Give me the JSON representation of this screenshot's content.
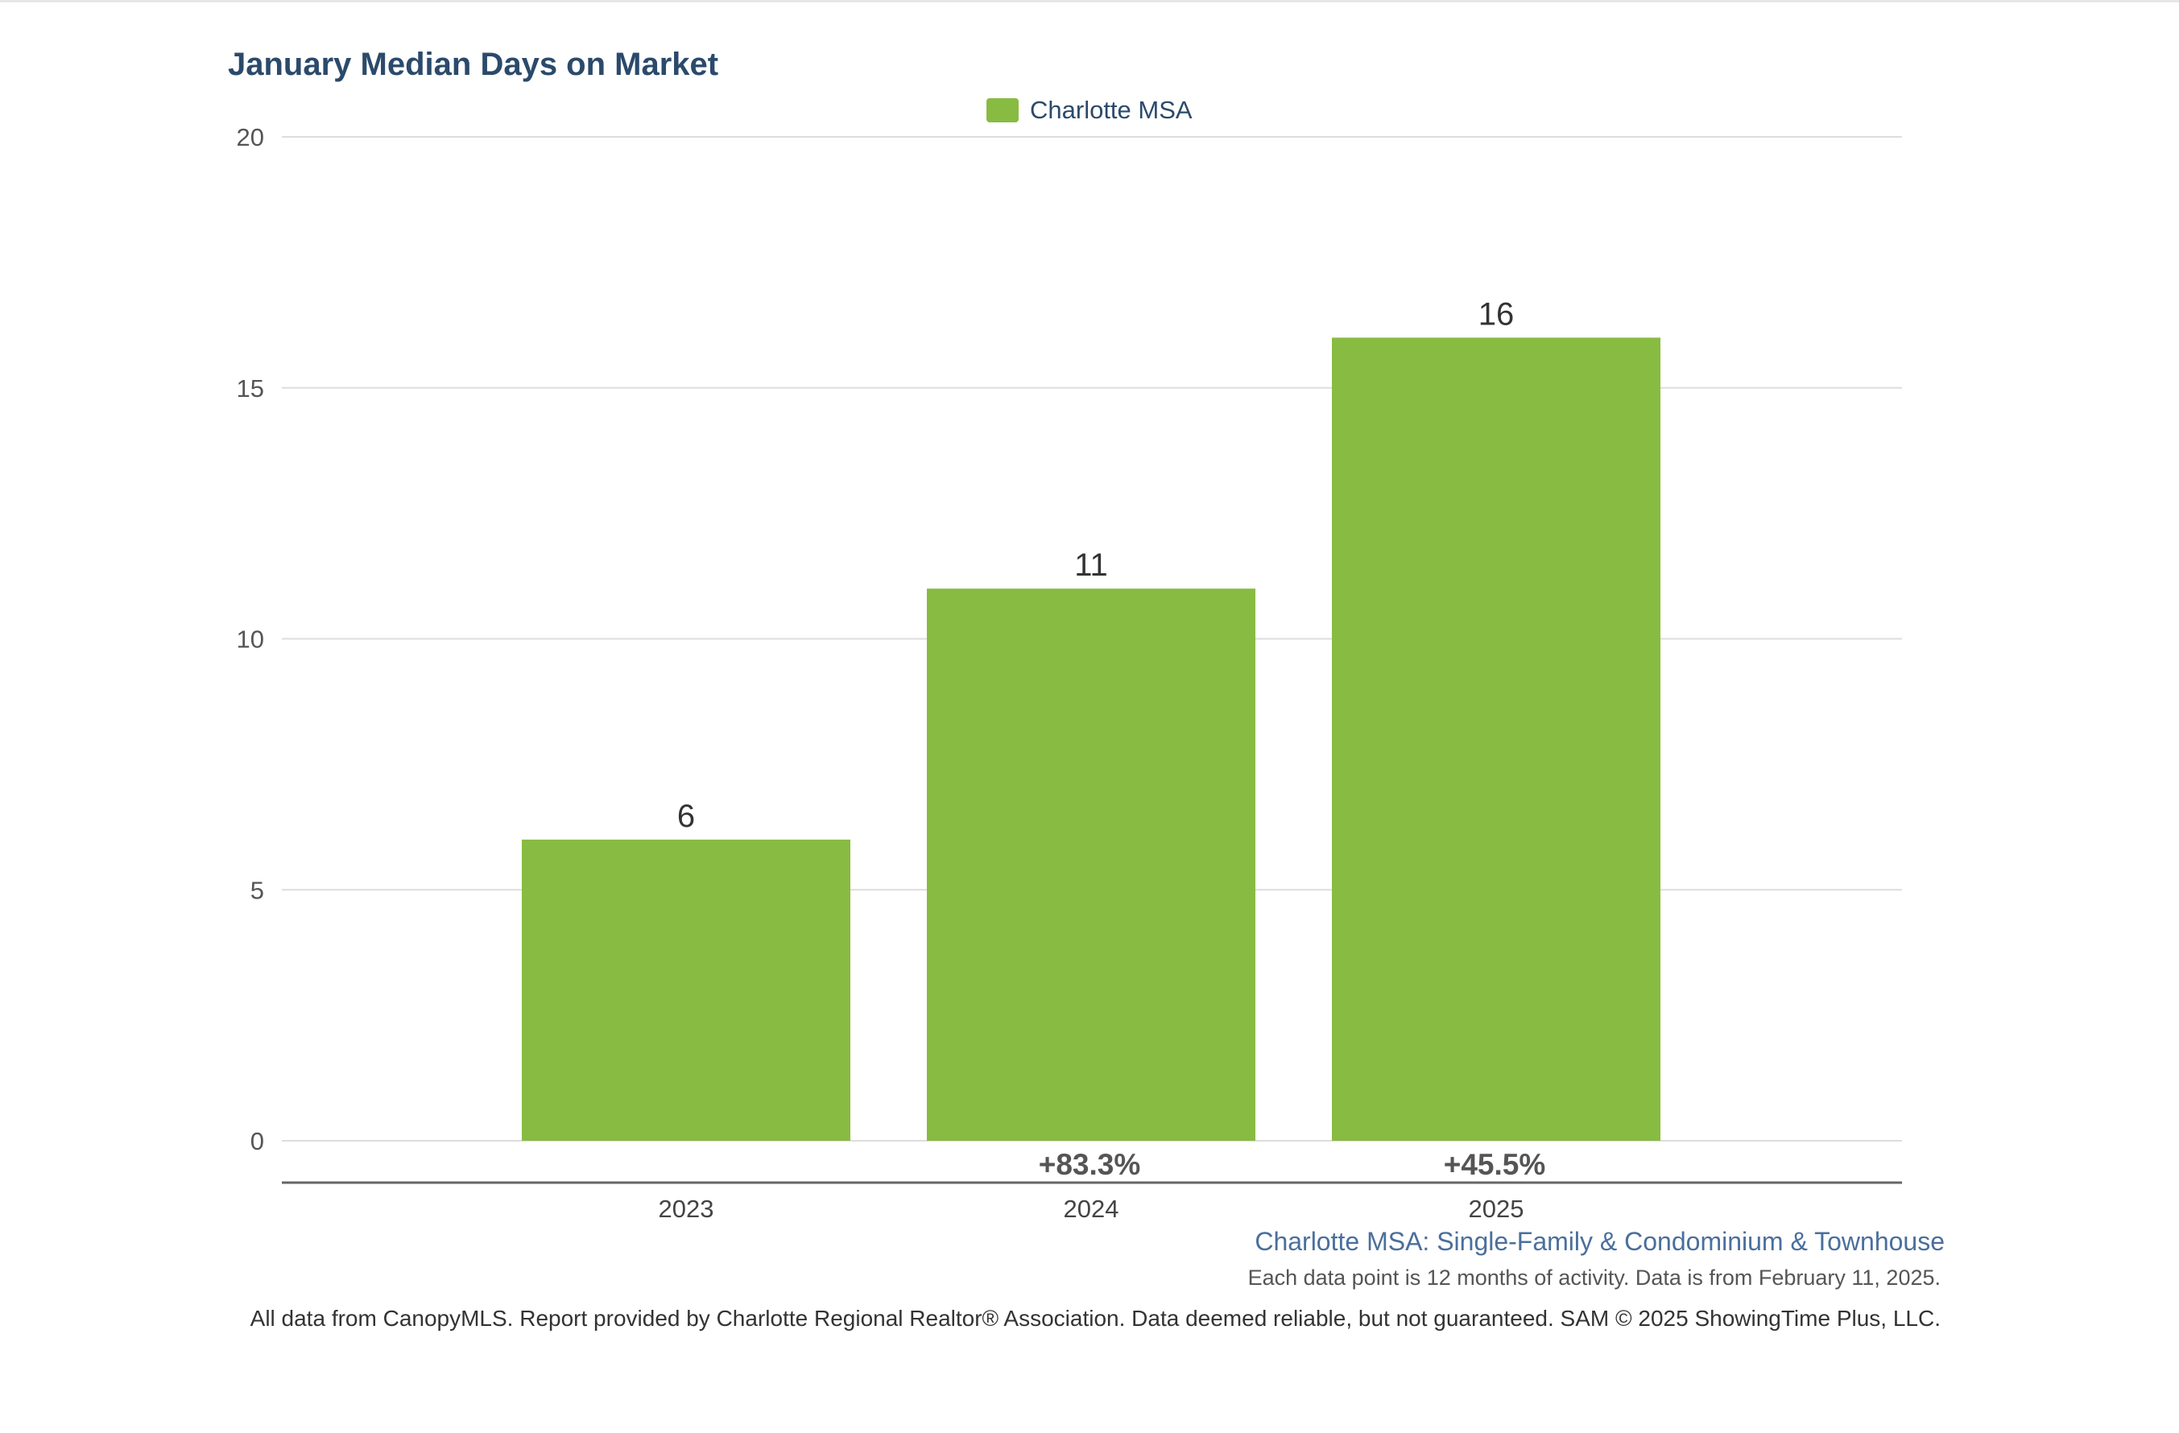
{
  "chart_data": {
    "type": "bar",
    "title": "January Median Days on Market",
    "categories": [
      "2023",
      "2024",
      "2025"
    ],
    "series": [
      {
        "name": "Charlotte MSA",
        "values": [
          6,
          11,
          16
        ],
        "color": "#88bb42"
      }
    ],
    "data_labels": [
      "6",
      "11",
      "16"
    ],
    "change_labels": [
      "",
      "+83.3%",
      "+45.5%"
    ],
    "ylim": [
      0,
      20
    ],
    "yticks": [
      0,
      5,
      10,
      15,
      20
    ],
    "xlabel": "",
    "ylabel": "",
    "grid": true,
    "legend_position": "top-center"
  },
  "subtitle": "Charlotte MSA: Single-Family & Condominium & Townhouse",
  "data_note": "Each data point is 12 months of activity. Data is from February 11, 2025.",
  "footer": "All data from CanopyMLS. Report provided by Charlotte Regional Realtor® Association. Data deemed reliable, but not guaranteed. SAM © 2025 ShowingTime Plus, LLC.",
  "colors": {
    "bar": "#88bb42",
    "title": "#2b4a6b",
    "subtitle": "#4a6f9c",
    "gridline": "#dddddd",
    "baseline": "#666666"
  }
}
